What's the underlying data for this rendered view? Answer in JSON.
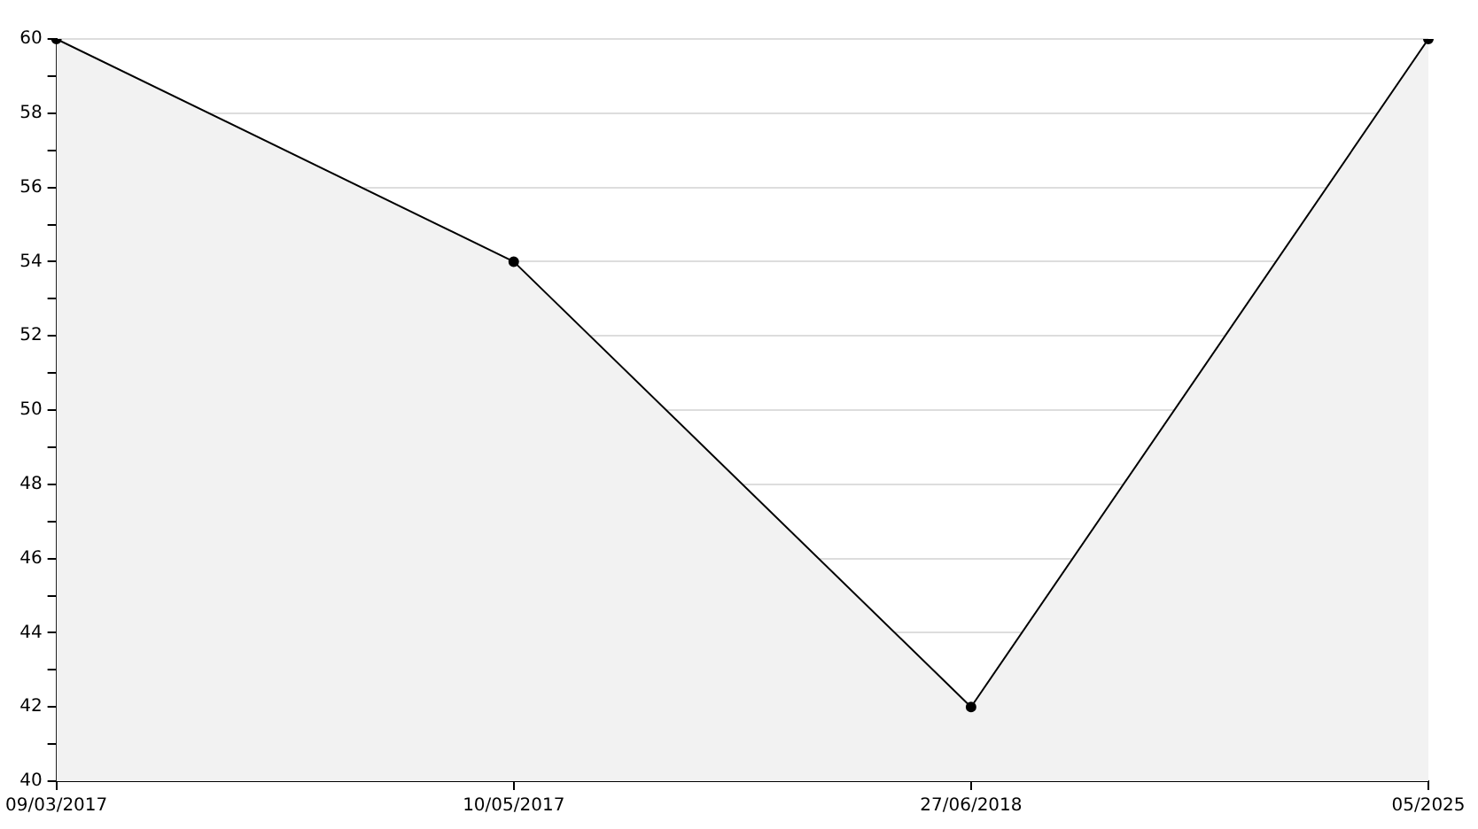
{
  "chart_data": {
    "type": "area",
    "categories": [
      "09/03/2017",
      "10/05/2017",
      "27/06/2018",
      "05/2025"
    ],
    "series": [
      {
        "color": "#000000",
        "values": [
          60,
          54,
          42,
          60
        ]
      }
    ],
    "ylim": [
      40,
      60
    ],
    "yticks": [
      40,
      {
        "value": 41,
        "label": null
      },
      42,
      {
        "value": 43,
        "label": null
      },
      44,
      {
        "value": 45,
        "label": null
      },
      46,
      {
        "value": 47,
        "label": null
      },
      48,
      {
        "value": 49,
        "label": null
      },
      50,
      {
        "value": 51,
        "label": null
      },
      52,
      {
        "value": 53,
        "label": null
      },
      54,
      {
        "value": 55,
        "label": null
      },
      56,
      {
        "value": 57,
        "label": null
      },
      58,
      {
        "value": 59,
        "label": null
      },
      60
    ],
    "grid": "y",
    "legend": false,
    "marker": "circle",
    "line_style": "solid"
  }
}
